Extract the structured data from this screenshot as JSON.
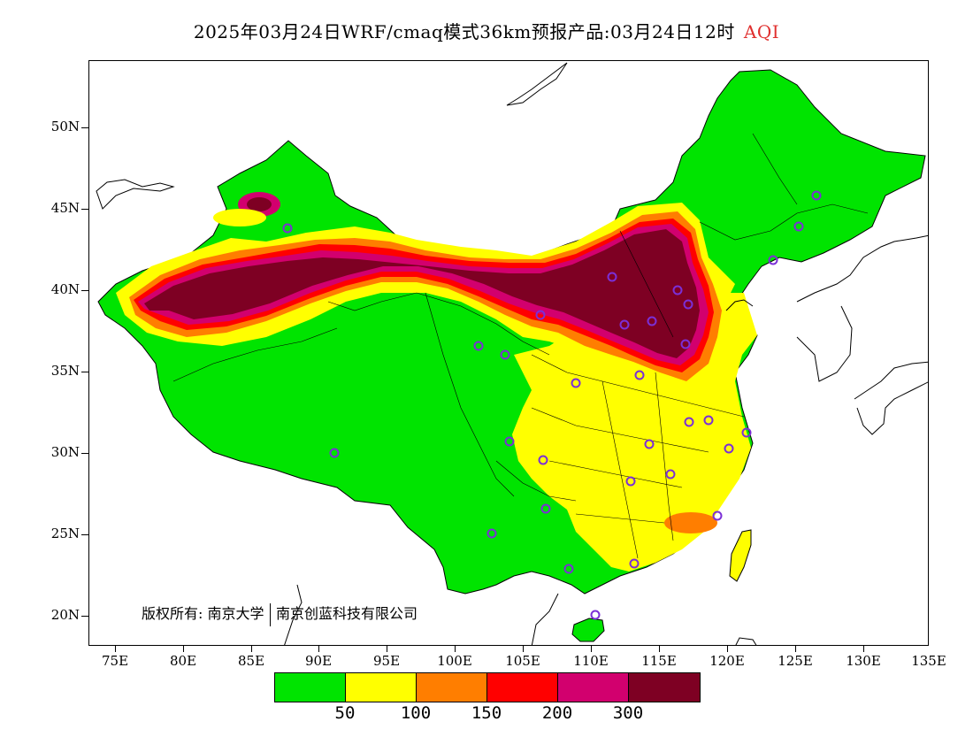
{
  "title": {
    "main": "2025年03月24日WRF/cmaq模式36km预报产品:03月24日12时",
    "variable": "AQI",
    "variable_color": "#e0302f"
  },
  "copyright": {
    "prefix": "版权所有:",
    "org1": "南京大学",
    "org2": "南京创蓝科技有限公司"
  },
  "axes": {
    "lat_labels": [
      "50N",
      "45N",
      "40N",
      "35N",
      "30N",
      "25N",
      "20N"
    ],
    "lon_labels": [
      "75E",
      "80E",
      "85E",
      "90E",
      "95E",
      "100E",
      "105E",
      "110E",
      "115E",
      "120E",
      "125E",
      "130E",
      "135E"
    ]
  },
  "legend": {
    "colors": [
      "#00e400",
      "#ffff00",
      "#ff7e00",
      "#ff0000",
      "#d2006e",
      "#7e0023"
    ],
    "labels": [
      "50",
      "100",
      "150",
      "200",
      "300"
    ]
  },
  "colors": {
    "good": "#00e400",
    "moderate": "#ffff00",
    "usg": "#ff7e00",
    "unhealthy": "#ff0000",
    "very_unhealthy": "#d2006e",
    "hazardous": "#7e0023",
    "station_marker": "#7b2fd6",
    "border": "#000000"
  }
}
